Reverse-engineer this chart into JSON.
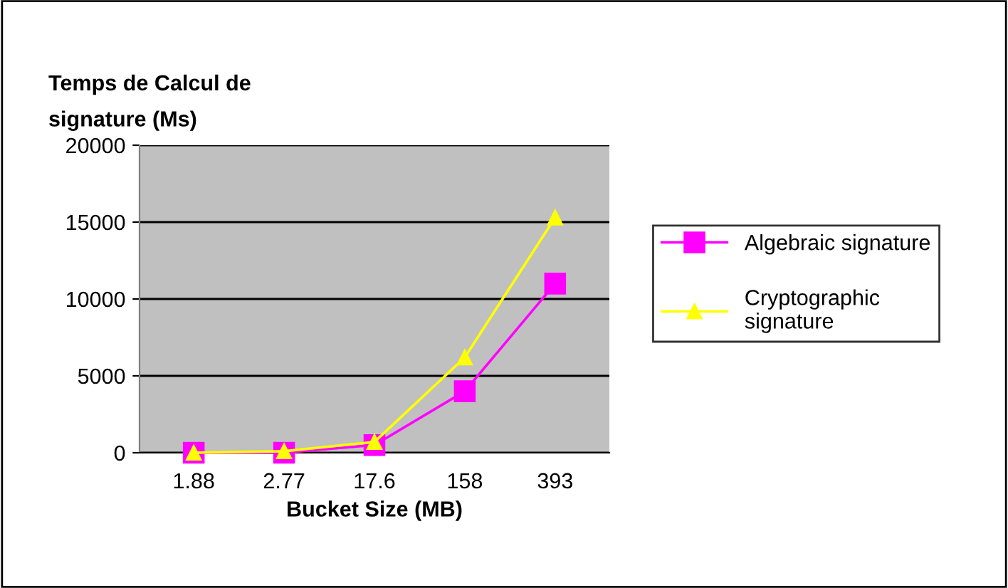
{
  "chart_data": {
    "type": "line",
    "title": "Temps de Calcul de\nsignature (Ms)",
    "xlabel": "Bucket Size (MB)",
    "categories": [
      "1.88",
      "2.77",
      "17.6",
      "158",
      "393"
    ],
    "series": [
      {
        "name": "Algebraic signature",
        "color": "#ff00ff",
        "marker": "square",
        "values": [
          0,
          0,
          500,
          4000,
          11000
        ]
      },
      {
        "name": "Cryptographic signature",
        "color": "#ffff00",
        "marker": "triangle",
        "values": [
          0,
          100,
          700,
          6200,
          15300
        ]
      }
    ],
    "ylim": [
      0,
      20000
    ],
    "yticks": [
      0,
      5000,
      10000,
      15000,
      20000
    ],
    "grid": "y",
    "legend": "right",
    "line_style": "solid"
  }
}
